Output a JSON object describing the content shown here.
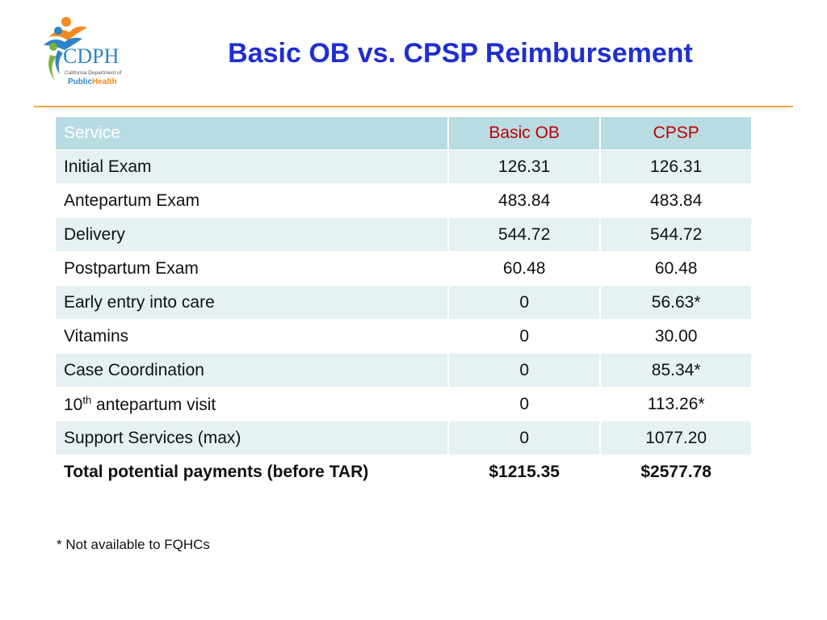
{
  "logo": {
    "initials": "CDPH",
    "caption_line1": "California Department of",
    "caption_public": "Public",
    "caption_health": "Health"
  },
  "slide": {
    "title": "Basic OB vs. CPSP Reimbursement"
  },
  "table": {
    "headers": [
      "Service",
      "Basic OB",
      "CPSP"
    ],
    "rows": [
      {
        "service": "Initial Exam",
        "basic_ob": "126.31",
        "cpsp": "126.31"
      },
      {
        "service": "Antepartum Exam",
        "basic_ob": "483.84",
        "cpsp": "483.84"
      },
      {
        "service": "Delivery",
        "basic_ob": "544.72",
        "cpsp": "544.72"
      },
      {
        "service": "Postpartum Exam",
        "basic_ob": "60.48",
        "cpsp": "60.48"
      },
      {
        "service": "Early entry into care",
        "basic_ob": "0",
        "cpsp": "56.63*"
      },
      {
        "service": "Vitamins",
        "basic_ob": "0",
        "cpsp": "30.00"
      },
      {
        "service": "Case Coordination",
        "basic_ob": "0",
        "cpsp": "85.34*"
      },
      {
        "service_number": "10",
        "service_sup": "th",
        "service_rest": " antepartum visit",
        "basic_ob": "0",
        "cpsp": "113.26*"
      },
      {
        "service": "Support Services (max)",
        "basic_ob": "0",
        "cpsp": "1077.20"
      }
    ],
    "total": {
      "service": "Total potential payments (before TAR)",
      "basic_ob": "$1215.35",
      "cpsp": "$2577.78"
    }
  },
  "footnote": "* Not available to FQHCs",
  "colors": {
    "title": "#1f2fd0",
    "header_bg": "#b9dbe2",
    "header_accent": "#c00000",
    "row_alt": "#e6f1f4",
    "divider": "#f0a64a"
  }
}
